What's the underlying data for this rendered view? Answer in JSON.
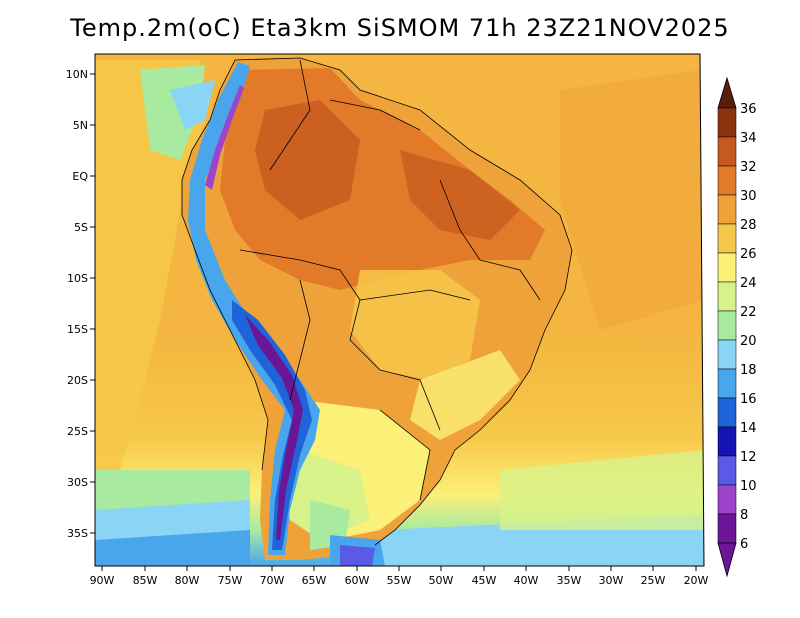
{
  "title": "Temp.2m(oC) Eta3km SiSMOM 71h 23Z21NOV2025",
  "lat_labels": [
    "10N",
    "5N",
    "EQ",
    "5S",
    "10S",
    "15S",
    "20S",
    "25S",
    "30S",
    "35S"
  ],
  "lon_labels": [
    "90W",
    "85W",
    "80W",
    "75W",
    "70W",
    "65W",
    "60W",
    "55W",
    "50W",
    "45W",
    "40W",
    "35W",
    "30W",
    "25W",
    "20W"
  ],
  "colorbar": {
    "labels": [
      "36",
      "34",
      "32",
      "30",
      "28",
      "26",
      "24",
      "22",
      "20",
      "18",
      "16",
      "14",
      "12",
      "10",
      "8",
      "6"
    ],
    "colors": [
      "#5a1e0a",
      "#8a3410",
      "#c65a1e",
      "#e27a2a",
      "#f0a23a",
      "#f6c84a",
      "#fbf078",
      "#d8f28a",
      "#a8eaa0",
      "#8ad4f6",
      "#49a6ec",
      "#1f64d8",
      "#1414b4",
      "#5a5ae6",
      "#9c44cc",
      "#6a1696"
    ]
  }
}
